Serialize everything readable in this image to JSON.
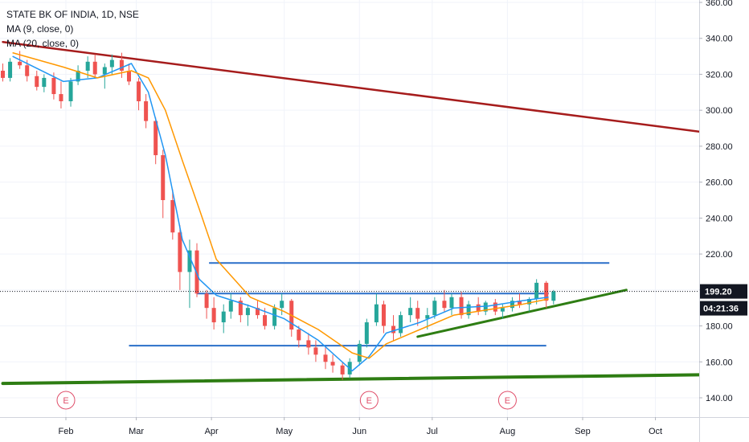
{
  "header": {
    "symbol": "STATE BK OF INDIA, 1D, NSE",
    "ma9_label": "MA (9, close, 0)",
    "ma20_label": "MA (20, close, 0)"
  },
  "colors": {
    "up": "#26a69a",
    "down": "#ef5350",
    "ma9": "#2196f3",
    "ma20": "#ff9800",
    "trend_down": "#a61c1c",
    "support_green": "#2e7d13",
    "levels": "#2a6fc9",
    "price_badge": "#131722",
    "earnings": "#e0506b"
  },
  "chart_data": {
    "type": "candlestick",
    "xlabel": "",
    "ylabel": "",
    "ylim": [
      130,
      365
    ],
    "y_ticks": [
      "360.00",
      "340.00",
      "320.00",
      "300.00",
      "280.00",
      "260.00",
      "240.00",
      "220.00",
      "200.00",
      "180.00",
      "160.00",
      "140.00"
    ],
    "x_ticks": [
      "Feb",
      "Mar",
      "Apr",
      "May",
      "Jun",
      "Jul",
      "Aug",
      "Sep",
      "Oct"
    ],
    "x_tick_dates": [
      "2020-02-01",
      "2020-03-01",
      "2020-04-01",
      "2020-05-01",
      "2020-06-01",
      "2020-07-01",
      "2020-08-01",
      "2020-09-01",
      "2020-10-01"
    ],
    "last_price": "199.20",
    "last_price_value": 199.2,
    "countdown": "04:21:36",
    "earnings_dates": [
      "2020-02-01",
      "2020-06-05",
      "2020-08-01"
    ],
    "earnings_label": "E",
    "drawings": {
      "resistance_trendline": {
        "points": [
          [
            "2020-01-06",
            338
          ],
          [
            "2020-10-31",
            286
          ]
        ]
      },
      "bottom_support_line": {
        "points": [
          [
            "2020-01-06",
            148
          ],
          [
            "2020-10-31",
            153
          ]
        ]
      },
      "rising_trendline": {
        "points": [
          [
            "2020-06-25",
            174
          ],
          [
            "2020-09-19",
            200
          ]
        ]
      },
      "horizontal_levels": [
        {
          "value": 215,
          "from": "2020-03-31",
          "to": "2020-09-12"
        },
        {
          "value": 198,
          "from": "2020-03-26",
          "to": "2020-08-18"
        },
        {
          "value": 169,
          "from": "2020-02-27",
          "to": "2020-08-17"
        }
      ]
    },
    "series": [
      {
        "name": "MA (9, close, 0)",
        "x": [
          "2020-01-10",
          "2020-01-31",
          "2020-02-14",
          "2020-02-28",
          "2020-03-06",
          "2020-03-13",
          "2020-03-20",
          "2020-03-27",
          "2020-04-03",
          "2020-04-17",
          "2020-05-01",
          "2020-05-15",
          "2020-05-29",
          "2020-06-05",
          "2020-06-12",
          "2020-06-26",
          "2020-07-10",
          "2020-07-24",
          "2020-08-07",
          "2020-08-18"
        ],
        "values": [
          330,
          316,
          318,
          326,
          310,
          275,
          228,
          206,
          197,
          191,
          184,
          172,
          155,
          163,
          176,
          182,
          190,
          191,
          194,
          196
        ]
      },
      {
        "name": "MA (20, close, 0)",
        "x": [
          "2020-01-10",
          "2020-01-31",
          "2020-02-14",
          "2020-02-28",
          "2020-03-06",
          "2020-03-13",
          "2020-03-20",
          "2020-03-27",
          "2020-04-03",
          "2020-04-17",
          "2020-05-01",
          "2020-05-15",
          "2020-05-29",
          "2020-06-05",
          "2020-06-12",
          "2020-06-26",
          "2020-07-10",
          "2020-07-24",
          "2020-08-07",
          "2020-08-18"
        ],
        "values": [
          332,
          324,
          318,
          322,
          318,
          300,
          272,
          245,
          217,
          196,
          188,
          178,
          165,
          162,
          170,
          178,
          186,
          189,
          192,
          195
        ]
      }
    ],
    "ohlc": [
      [
        "2020-01-06",
        322,
        326,
        316,
        318
      ],
      [
        "2020-01-09",
        318,
        329,
        316,
        327
      ],
      [
        "2020-01-13",
        327,
        333,
        323,
        325
      ],
      [
        "2020-01-16",
        325,
        328,
        316,
        319
      ],
      [
        "2020-01-20",
        319,
        322,
        311,
        313
      ],
      [
        "2020-01-23",
        313,
        320,
        310,
        318
      ],
      [
        "2020-01-27",
        318,
        321,
        306,
        309
      ],
      [
        "2020-01-30",
        309,
        316,
        301,
        305
      ],
      [
        "2020-02-03",
        305,
        318,
        302,
        316
      ],
      [
        "2020-02-06",
        316,
        325,
        314,
        322
      ],
      [
        "2020-02-10",
        322,
        330,
        318,
        327
      ],
      [
        "2020-02-13",
        327,
        331,
        318,
        320
      ],
      [
        "2020-02-17",
        320,
        326,
        312,
        324
      ],
      [
        "2020-02-20",
        324,
        331,
        320,
        328
      ],
      [
        "2020-02-24",
        328,
        332,
        318,
        322
      ],
      [
        "2020-02-27",
        322,
        326,
        314,
        316
      ],
      [
        "2020-03-02",
        316,
        318,
        300,
        305
      ],
      [
        "2020-03-05",
        305,
        309,
        290,
        294
      ],
      [
        "2020-03-09",
        294,
        296,
        270,
        275
      ],
      [
        "2020-03-12",
        275,
        278,
        240,
        250
      ],
      [
        "2020-03-16",
        250,
        256,
        228,
        232
      ],
      [
        "2020-03-19",
        232,
        236,
        200,
        210
      ],
      [
        "2020-03-23",
        210,
        228,
        190,
        222
      ],
      [
        "2020-03-26",
        222,
        226,
        196,
        198
      ],
      [
        "2020-03-30",
        198,
        200,
        184,
        190
      ],
      [
        "2020-04-02",
        190,
        196,
        178,
        182
      ],
      [
        "2020-04-06",
        182,
        192,
        176,
        188
      ],
      [
        "2020-04-09",
        188,
        198,
        184,
        194
      ],
      [
        "2020-04-13",
        194,
        196,
        182,
        186
      ],
      [
        "2020-04-16",
        186,
        192,
        180,
        190
      ],
      [
        "2020-04-20",
        190,
        194,
        184,
        186
      ],
      [
        "2020-04-23",
        186,
        190,
        178,
        180
      ],
      [
        "2020-04-27",
        180,
        192,
        178,
        190
      ],
      [
        "2020-04-30",
        190,
        198,
        186,
        194
      ],
      [
        "2020-05-04",
        194,
        195,
        174,
        178
      ],
      [
        "2020-05-07",
        178,
        180,
        168,
        172
      ],
      [
        "2020-05-11",
        172,
        176,
        164,
        168
      ],
      [
        "2020-05-14",
        168,
        172,
        160,
        164
      ],
      [
        "2020-05-18",
        164,
        168,
        156,
        160
      ],
      [
        "2020-05-21",
        160,
        164,
        154,
        158
      ],
      [
        "2020-05-25",
        158,
        160,
        150,
        153
      ],
      [
        "2020-05-28",
        153,
        162,
        151,
        160
      ],
      [
        "2020-06-01",
        160,
        172,
        158,
        170
      ],
      [
        "2020-06-04",
        170,
        184,
        168,
        182
      ],
      [
        "2020-06-08",
        182,
        198,
        180,
        192
      ],
      [
        "2020-06-11",
        192,
        194,
        176,
        180
      ],
      [
        "2020-06-15",
        180,
        186,
        172,
        176
      ],
      [
        "2020-06-18",
        176,
        188,
        174,
        186
      ],
      [
        "2020-06-22",
        186,
        196,
        182,
        190
      ],
      [
        "2020-06-25",
        190,
        194,
        180,
        184
      ],
      [
        "2020-06-29",
        184,
        190,
        178,
        186
      ],
      [
        "2020-07-02",
        186,
        196,
        184,
        194
      ],
      [
        "2020-07-06",
        194,
        200,
        188,
        190
      ],
      [
        "2020-07-09",
        190,
        198,
        186,
        196
      ],
      [
        "2020-07-13",
        196,
        199,
        184,
        186
      ],
      [
        "2020-07-16",
        186,
        194,
        184,
        192
      ],
      [
        "2020-07-20",
        192,
        196,
        186,
        188
      ],
      [
        "2020-07-23",
        188,
        194,
        186,
        193
      ],
      [
        "2020-07-27",
        193,
        195,
        186,
        188
      ],
      [
        "2020-07-30",
        188,
        192,
        184,
        190
      ],
      [
        "2020-08-03",
        190,
        196,
        188,
        194
      ],
      [
        "2020-08-06",
        194,
        198,
        190,
        192
      ],
      [
        "2020-08-10",
        192,
        196,
        188,
        195
      ],
      [
        "2020-08-13",
        195,
        206,
        192,
        204
      ],
      [
        "2020-08-17",
        204,
        205,
        190,
        194
      ],
      [
        "2020-08-20",
        194,
        200,
        192,
        199.2
      ]
    ]
  }
}
